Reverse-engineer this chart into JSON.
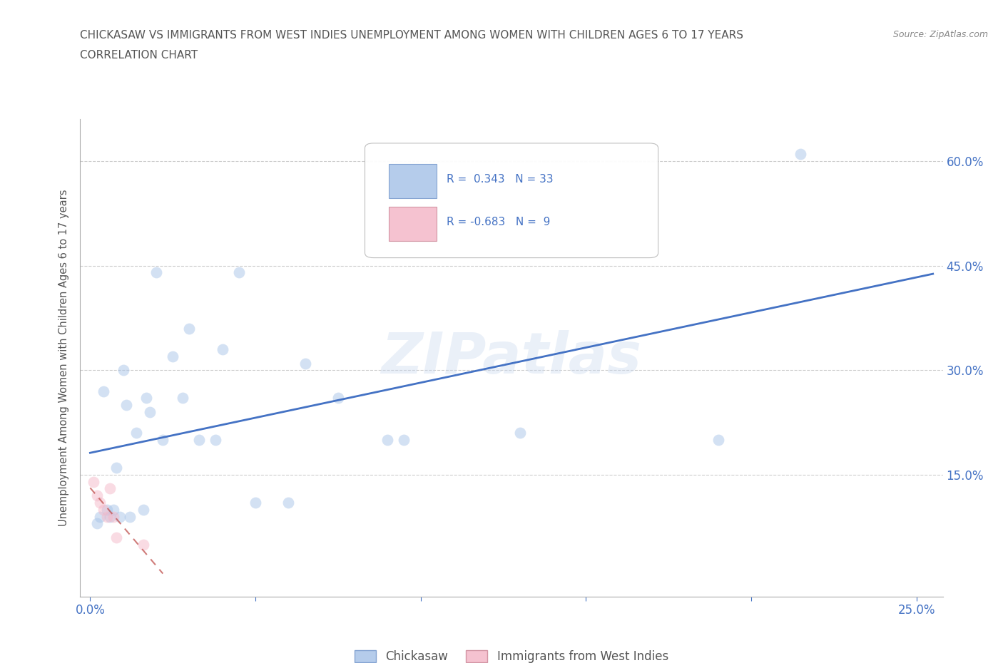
{
  "title_line1": "CHICKASAW VS IMMIGRANTS FROM WEST INDIES UNEMPLOYMENT AMONG WOMEN WITH CHILDREN AGES 6 TO 17 YEARS",
  "title_line2": "CORRELATION CHART",
  "source": "Source: ZipAtlas.com",
  "ylabel": "Unemployment Among Women with Children Ages 6 to 17 years",
  "watermark": "ZIPatlas",
  "chickasaw_color": "#a8c4e8",
  "immigrant_color": "#f4b8c8",
  "line_chickasaw_color": "#4472c4",
  "line_immigrant_color": "#c0504d",
  "legend_r_chickasaw": "R =  0.343",
  "legend_n_chickasaw": "N = 33",
  "legend_r_immigrant": "R = -0.683",
  "legend_n_immigrant": "N =  9",
  "xlim": [
    -0.003,
    0.258
  ],
  "ylim": [
    -0.025,
    0.66
  ],
  "xticks": [
    0.0,
    0.05,
    0.1,
    0.15,
    0.2,
    0.25
  ],
  "xtick_labels": [
    "0.0%",
    "",
    "",
    "",
    "",
    "25.0%"
  ],
  "ytick_positions": [
    0.0,
    0.15,
    0.3,
    0.45,
    0.6
  ],
  "ytick_labels": [
    "",
    "15.0%",
    "30.0%",
    "45.0%",
    "60.0%"
  ],
  "chickasaw_x": [
    0.002,
    0.003,
    0.004,
    0.005,
    0.006,
    0.007,
    0.008,
    0.009,
    0.01,
    0.011,
    0.012,
    0.014,
    0.016,
    0.017,
    0.018,
    0.02,
    0.022,
    0.025,
    0.028,
    0.03,
    0.033,
    0.038,
    0.04,
    0.045,
    0.05,
    0.06,
    0.065,
    0.075,
    0.09,
    0.095,
    0.13,
    0.19,
    0.215
  ],
  "chickasaw_y": [
    0.08,
    0.09,
    0.27,
    0.1,
    0.09,
    0.1,
    0.16,
    0.09,
    0.3,
    0.25,
    0.09,
    0.21,
    0.1,
    0.26,
    0.24,
    0.44,
    0.2,
    0.32,
    0.26,
    0.36,
    0.2,
    0.2,
    0.33,
    0.44,
    0.11,
    0.11,
    0.31,
    0.26,
    0.2,
    0.2,
    0.21,
    0.2,
    0.61
  ],
  "immigrant_x": [
    0.001,
    0.002,
    0.003,
    0.004,
    0.005,
    0.006,
    0.007,
    0.008,
    0.016
  ],
  "immigrant_y": [
    0.14,
    0.12,
    0.11,
    0.1,
    0.09,
    0.13,
    0.09,
    0.06,
    0.05
  ],
  "bg_color": "#ffffff",
  "grid_color": "#cccccc",
  "axis_color": "#aaaaaa",
  "title_color": "#555555",
  "tick_color": "#4472c4",
  "marker_size": 130,
  "marker_alpha": 0.5
}
